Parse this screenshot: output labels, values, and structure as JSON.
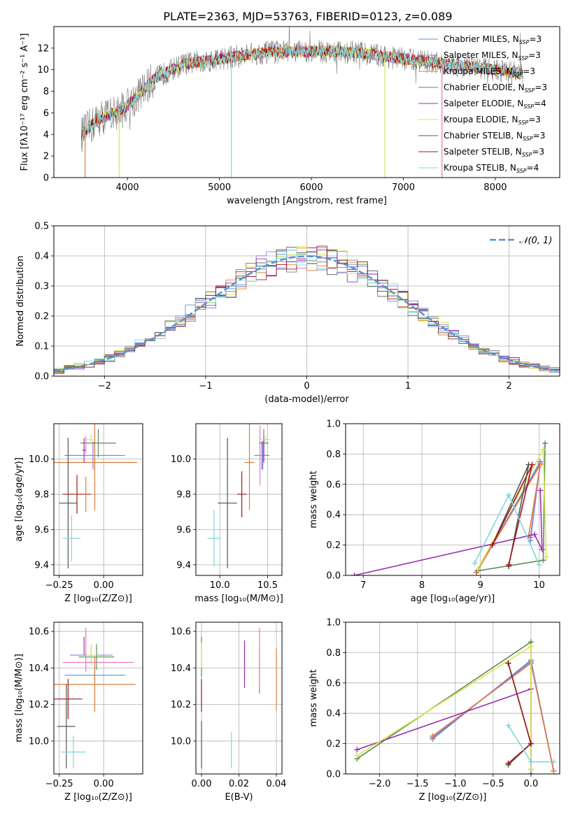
{
  "figure": {
    "title": "PLATE=2363, MJD=53763, FIBERID=0123, z=0.089"
  },
  "colors": {
    "chabrier_miles": "#5b8fd8",
    "salpeter_miles": "#8b7fe6",
    "kroupa_miles": "#e07b39",
    "chabrier_elodie": "#5b8a55",
    "salpeter_elodie": "#9b30b0",
    "kroupa_elodie": "#d6e84a",
    "chabrier_stelib": "#555555",
    "salpeter_stelib": "#a01818",
    "kroupa_stelib": "#7fd6dc",
    "extra_pink": "#e87ab8",
    "normal_curve": "#5b8fd8"
  },
  "legend_entries": [
    {
      "key": "chabrier_miles",
      "label": "Chabrier MILES, N",
      "sub": "SSP",
      "suffix": "=3"
    },
    {
      "key": "salpeter_miles",
      "label": "Salpeter MILES, N",
      "sub": "SSP",
      "suffix": "=3"
    },
    {
      "key": "kroupa_miles",
      "label": "Kroupa MILES, N",
      "sub": "SSP",
      "suffix": "=3"
    },
    {
      "key": "chabrier_elodie",
      "label": "Chabrier ELODIE, N",
      "sub": "SSP",
      "suffix": "=3"
    },
    {
      "key": "salpeter_elodie",
      "label": "Salpeter ELODIE, N",
      "sub": "SSP",
      "suffix": "=4"
    },
    {
      "key": "kroupa_elodie",
      "label": "Kroupa ELODIE, N",
      "sub": "SSP",
      "suffix": "=3"
    },
    {
      "key": "chabrier_stelib",
      "label": "Chabrier STELIB, N",
      "sub": "SSP",
      "suffix": "=3"
    },
    {
      "key": "salpeter_stelib",
      "label": "Salpeter STELIB, N",
      "sub": "SSP",
      "suffix": "=3"
    },
    {
      "key": "kroupa_stelib",
      "label": "Kroupa STELIB, N",
      "sub": "SSP",
      "suffix": "=4"
    }
  ],
  "chart_data": [
    {
      "id": "spectrum",
      "type": "line",
      "xlabel": "wavelength [Angstrom, rest frame]",
      "ylabel": "Flux [fλ10⁻¹⁷ erg cm⁻² s⁻¹ A⁻¹]",
      "xlim": [
        3200,
        8700
      ],
      "ylim": [
        0,
        14
      ],
      "xticks": [
        4000,
        5000,
        6000,
        7000,
        8000
      ],
      "yticks": [
        0,
        2,
        4,
        6,
        8,
        10,
        12
      ],
      "continuum": [
        [
          3500,
          4.0
        ],
        [
          3700,
          5.5
        ],
        [
          3950,
          6.3
        ],
        [
          4100,
          7.5
        ],
        [
          4300,
          9.2
        ],
        [
          4600,
          10.5
        ],
        [
          5000,
          11.0
        ],
        [
          5500,
          11.6
        ],
        [
          6000,
          11.7
        ],
        [
          6500,
          11.6
        ],
        [
          7000,
          11.0
        ],
        [
          7500,
          10.5
        ],
        [
          8000,
          10.0
        ],
        [
          8300,
          9.6
        ]
      ],
      "vertical_spikes": [
        {
          "x": 5130,
          "color_key": "kroupa_stelib"
        },
        {
          "x": 6800,
          "color_key": "kroupa_elodie"
        },
        {
          "x": 7420,
          "color_key": "extra_pink"
        },
        {
          "x": 3910,
          "color_key": "kroupa_elodie"
        },
        {
          "x": 3540,
          "color_key": "kroupa_miles"
        }
      ]
    },
    {
      "id": "residuals",
      "type": "histogram",
      "xlabel": "(data-model)/error",
      "ylabel": "Normed distribution",
      "xlim": [
        -2.5,
        2.5
      ],
      "ylim": [
        0,
        0.5
      ],
      "xticks": [
        -2,
        -1,
        0,
        1,
        2
      ],
      "yticks": [
        0.0,
        0.1,
        0.2,
        0.3,
        0.4,
        0.5
      ],
      "legend": "𝒩(0, 1)",
      "normal": {
        "mean": 0,
        "sigma": 1
      }
    },
    {
      "id": "age_vs_Z",
      "type": "scatter",
      "xlabel": "Z [log₁₀(Z/Z⊙)]",
      "ylabel": "age  [log₁₀(age/yr)]",
      "xlim": [
        -0.28,
        0.22
      ],
      "ylim": [
        9.34,
        10.2
      ],
      "xticks": [
        -0.25,
        0.0
      ],
      "yticks": [
        9.4,
        9.6,
        9.8,
        10.0
      ],
      "points": [
        {
          "key": "chabrier_miles",
          "x": -0.05,
          "y": 10.02,
          "xerr": 0.17,
          "yerr": 0.08
        },
        {
          "key": "salpeter_miles",
          "x": -0.06,
          "y": 10.02,
          "xerr": 0.13,
          "yerr": 0.08
        },
        {
          "key": "kroupa_miles",
          "x": -0.05,
          "y": 9.98,
          "xerr": 0.24,
          "yerr": 0.27
        },
        {
          "key": "chabrier_elodie",
          "x": -0.03,
          "y": 10.09,
          "xerr": 0.1,
          "yerr": 0.08
        },
        {
          "key": "salpeter_elodie",
          "x": -0.11,
          "y": 10.05,
          "xerr": 0.01,
          "yerr": 0.07
        },
        {
          "key": "kroupa_elodie",
          "x": -0.07,
          "y": 10.11,
          "xerr": 0.03,
          "yerr": 0.03
        },
        {
          "key": "chabrier_stelib",
          "x": -0.2,
          "y": 9.75,
          "xerr": 0.05,
          "yerr": 0.37
        },
        {
          "key": "salpeter_stelib",
          "x": -0.15,
          "y": 9.8,
          "xerr": 0.08,
          "yerr": 0.11
        },
        {
          "key": "kroupa_stelib",
          "x": -0.18,
          "y": 9.55,
          "xerr": 0.05,
          "yerr": 0.13
        },
        {
          "key": "extra_pink",
          "x": -0.1,
          "y": 10.08,
          "xerr": 0.0,
          "yerr": 0.05
        },
        {
          "key": "kroupa_miles",
          "x": -0.1,
          "y": 9.8,
          "xerr": 0.0,
          "yerr": 0.1
        }
      ]
    },
    {
      "id": "age_vs_mass",
      "type": "scatter",
      "xlabel": "mass [log₁₀(M/M⊙)]",
      "ylabel": "",
      "xlim": [
        9.75,
        10.65
      ],
      "ylim": [
        9.34,
        10.2
      ],
      "xticks": [
        10.0,
        10.5
      ],
      "yticks": [
        9.4,
        9.6,
        9.8,
        10.0
      ],
      "points": [
        {
          "key": "chabrier_miles",
          "x": 10.44,
          "y": 10.02,
          "xerr": 0.08,
          "yerr": 0.08
        },
        {
          "key": "salpeter_miles",
          "x": 10.45,
          "y": 10.02,
          "xerr": 0.05,
          "yerr": 0.08
        },
        {
          "key": "kroupa_miles",
          "x": 10.31,
          "y": 9.98,
          "xerr": 0.05,
          "yerr": 0.27
        },
        {
          "key": "chabrier_elodie",
          "x": 10.46,
          "y": 10.09,
          "xerr": 0.05,
          "yerr": 0.08
        },
        {
          "key": "salpeter_elodie",
          "x": 10.46,
          "y": 10.05,
          "xerr": 0.0,
          "yerr": 0.07
        },
        {
          "key": "kroupa_elodie",
          "x": 10.48,
          "y": 10.11,
          "xerr": 0.05,
          "yerr": 0.02
        },
        {
          "key": "chabrier_stelib",
          "x": 10.08,
          "y": 9.75,
          "xerr": 0.1,
          "yerr": 0.37
        },
        {
          "key": "salpeter_stelib",
          "x": 10.23,
          "y": 9.8,
          "xerr": 0.05,
          "yerr": 0.13
        },
        {
          "key": "kroupa_stelib",
          "x": 9.94,
          "y": 9.55,
          "xerr": 0.07,
          "yerr": 0.16
        },
        {
          "key": "extra_pink",
          "x": 10.42,
          "y": 10.02,
          "xerr": 0.0,
          "yerr": 0.17
        }
      ]
    },
    {
      "id": "weight_vs_age",
      "type": "line",
      "xlabel": "age  [log₁₀(age/yr)]",
      "ylabel": "mass weight",
      "xlim": [
        6.7,
        10.35
      ],
      "ylim": [
        0,
        1
      ],
      "xticks": [
        7,
        8,
        9,
        10
      ],
      "yticks": [
        0.0,
        0.2,
        0.4,
        0.6,
        0.8,
        1.0
      ],
      "series": [
        {
          "key": "chabrier_miles",
          "x": [
            8.93,
            10.02,
            9.85
          ],
          "y": [
            0.02,
            0.75,
            0.23
          ]
        },
        {
          "key": "salpeter_miles",
          "x": [
            8.93,
            10.02,
            9.85
          ],
          "y": [
            0.02,
            0.74,
            0.25
          ]
        },
        {
          "key": "kroupa_miles",
          "x": [
            8.93,
            10.02,
            9.82
          ],
          "y": [
            0.02,
            0.73,
            0.26
          ]
        },
        {
          "key": "chabrier_elodie",
          "x": [
            8.95,
            10.07,
            10.1
          ],
          "y": [
            0.03,
            0.1,
            0.87
          ]
        },
        {
          "key": "salpeter_elodie",
          "x": [
            6.85,
            9.92,
            10.05,
            10.02
          ],
          "y": [
            0.0,
            0.27,
            0.17,
            0.56
          ]
        },
        {
          "key": "kroupa_elodie",
          "x": [
            8.95,
            10.07,
            10.12
          ],
          "y": [
            0.04,
            0.83,
            0.12
          ]
        },
        {
          "key": "chabrier_stelib",
          "x": [
            9.2,
            9.82,
            9.48
          ],
          "y": [
            0.2,
            0.73,
            0.06
          ]
        },
        {
          "key": "salpeter_stelib",
          "x": [
            9.2,
            9.88,
            9.48
          ],
          "y": [
            0.2,
            0.73,
            0.07
          ]
        },
        {
          "key": "kroupa_stelib",
          "x": [
            8.9,
            9.48,
            10.0
          ],
          "y": [
            0.08,
            0.53,
            0.07
          ]
        }
      ]
    },
    {
      "id": "mass_vs_Z",
      "type": "scatter",
      "xlabel": "Z [log₁₀(Z/Z⊙)]",
      "ylabel": "mass [log₁₀(M/M⊙)]",
      "xlim": [
        -0.28,
        0.22
      ],
      "ylim": [
        9.82,
        10.65
      ],
      "xticks": [
        -0.25,
        0.0
      ],
      "yticks": [
        10.0,
        10.2,
        10.4,
        10.6
      ],
      "points": [
        {
          "key": "chabrier_miles",
          "x": -0.05,
          "y": 10.36,
          "xerr": 0.17,
          "yerr": 0.05
        },
        {
          "key": "salpeter_miles",
          "x": -0.07,
          "y": 10.47,
          "xerr": 0.12,
          "yerr": 0.05
        },
        {
          "key": "kroupa_miles",
          "x": -0.05,
          "y": 10.31,
          "xerr": 0.23,
          "yerr": 0.15
        },
        {
          "key": "chabrier_elodie",
          "x": -0.04,
          "y": 10.46,
          "xerr": 0.1,
          "yerr": 0.07
        },
        {
          "key": "salpeter_elodie",
          "x": -0.11,
          "y": 10.52,
          "xerr": 0.0,
          "yerr": 0.05
        },
        {
          "key": "kroupa_elodie",
          "x": -0.07,
          "y": 10.47,
          "xerr": 0.03,
          "yerr": 0.06
        },
        {
          "key": "chabrier_stelib",
          "x": -0.21,
          "y": 10.08,
          "xerr": 0.05,
          "yerr": 0.23
        },
        {
          "key": "salpeter_stelib",
          "x": -0.2,
          "y": 10.23,
          "xerr": 0.08,
          "yerr": 0.11
        },
        {
          "key": "kroupa_stelib",
          "x": -0.17,
          "y": 9.94,
          "xerr": 0.07,
          "yerr": 0.09
        },
        {
          "key": "extra_pink",
          "x": -0.03,
          "y": 10.43,
          "xerr": 0.2,
          "yerr": 0.0
        },
        {
          "key": "extra_pink",
          "x": -0.1,
          "y": 10.5,
          "xerr": 0.0,
          "yerr": 0.12
        }
      ]
    },
    {
      "id": "mass_vs_ebv",
      "type": "scatter",
      "xlabel": "E(B-V)",
      "ylabel": "",
      "xlim": [
        -0.003,
        0.043
      ],
      "ylim": [
        9.82,
        10.65
      ],
      "xticks": [
        0.0,
        0.02,
        0.04
      ],
      "yticks": [
        10.0,
        10.2,
        10.4,
        10.6
      ],
      "points": [
        {
          "key": "chabrier_miles",
          "x": 0.031,
          "y": 10.38,
          "xerr": 0.0,
          "yerr": 0.12
        },
        {
          "key": "salpeter_miles",
          "x": 0.023,
          "y": 10.43,
          "xerr": 0.0,
          "yerr": 0.1
        },
        {
          "key": "kroupa_miles",
          "x": 0.04,
          "y": 10.34,
          "xerr": 0.0,
          "yerr": 0.17
        },
        {
          "key": "chabrier_elodie",
          "x": 0.0,
          "y": 10.46,
          "xerr": 0.0,
          "yerr": 0.11
        },
        {
          "key": "salpeter_elodie",
          "x": 0.023,
          "y": 10.42,
          "xerr": 0.0,
          "yerr": 0.13
        },
        {
          "key": "kroupa_elodie",
          "x": 0.0,
          "y": 10.47,
          "xerr": 0.0,
          "yerr": 0.07
        },
        {
          "key": "chabrier_stelib",
          "x": 0.0,
          "y": 9.98,
          "xerr": 0.0,
          "yerr": 0.13
        },
        {
          "key": "salpeter_stelib",
          "x": 0.0,
          "y": 10.25,
          "xerr": 0.0,
          "yerr": 0.09
        },
        {
          "key": "kroupa_stelib",
          "x": 0.016,
          "y": 9.95,
          "xerr": 0.0,
          "yerr": 0.1
        },
        {
          "key": "extra_pink",
          "x": 0.031,
          "y": 10.46,
          "xerr": 0.0,
          "yerr": 0.16
        }
      ]
    },
    {
      "id": "weight_vs_Z",
      "type": "line",
      "xlabel": "Z [log₁₀(Z/Z⊙)]",
      "ylabel": "mass weight",
      "xlim": [
        -2.45,
        0.38
      ],
      "ylim": [
        0,
        1
      ],
      "xticks": [
        -2.0,
        -1.5,
        -1.0,
        -0.5,
        0.0
      ],
      "xticklabels": [
        "−2.0",
        "−1.5",
        "−1.0",
        "−0.5",
        "0.0"
      ],
      "yticks": [
        0.0,
        0.2,
        0.4,
        0.6,
        0.8,
        1.0
      ],
      "series": [
        {
          "key": "chabrier_miles",
          "x": [
            -1.3,
            0.0,
            0.3
          ],
          "y": [
            0.23,
            0.75,
            0.02
          ]
        },
        {
          "key": "salpeter_miles",
          "x": [
            -1.3,
            0.0,
            0.3
          ],
          "y": [
            0.24,
            0.74,
            0.02
          ]
        },
        {
          "key": "kroupa_miles",
          "x": [
            -1.3,
            0.0,
            0.3
          ],
          "y": [
            0.25,
            0.73,
            0.02
          ]
        },
        {
          "key": "chabrier_elodie",
          "x": [
            -2.3,
            0.0,
            0.0
          ],
          "y": [
            0.1,
            0.87,
            0.03
          ]
        },
        {
          "key": "salpeter_elodie",
          "x": [
            -2.3,
            0.0,
            0.0
          ],
          "y": [
            0.16,
            0.56,
            0.0
          ]
        },
        {
          "key": "kroupa_elodie",
          "x": [
            -2.3,
            0.0,
            0.0
          ],
          "y": [
            0.12,
            0.84,
            0.03
          ]
        },
        {
          "key": "chabrier_stelib",
          "x": [
            -0.3,
            0.0,
            -0.3
          ],
          "y": [
            0.73,
            0.2,
            0.06
          ]
        },
        {
          "key": "salpeter_stelib",
          "x": [
            -0.3,
            0.0,
            -0.3
          ],
          "y": [
            0.73,
            0.2,
            0.07
          ]
        },
        {
          "key": "kroupa_stelib",
          "x": [
            -0.3,
            0.0,
            0.3
          ],
          "y": [
            0.32,
            0.08,
            0.08
          ]
        }
      ]
    }
  ]
}
